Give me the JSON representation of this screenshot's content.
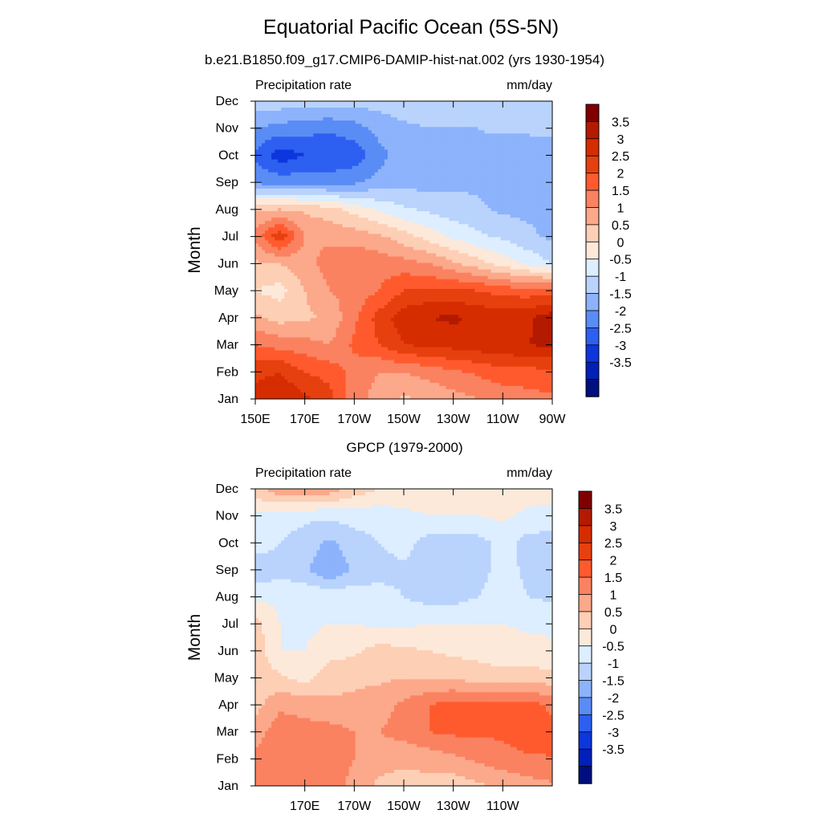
{
  "title": "Equatorial Pacific Ocean (5S-5N)",
  "panels": [
    {
      "subtitle": "b.e21.B1850.f09_g17.CMIP6-DAMIP-hist-nat.002 (yrs 1930-1954)",
      "left_label": "Precipitation rate",
      "right_label": "mm/day",
      "ylabel": "Month"
    },
    {
      "subtitle": "GPCP (1979-2000)",
      "left_label": "Precipitation rate",
      "right_label": "mm/day",
      "ylabel": "Month"
    }
  ],
  "colorbar": {
    "labels": [
      "3.5",
      "3",
      "2.5",
      "2",
      "1.5",
      "1",
      "0.5",
      "0",
      "-0.5",
      "-1",
      "-1.5",
      "-2",
      "-2.5",
      "-3",
      "-3.5"
    ],
    "colors": [
      "#800000",
      "#b31a00",
      "#d62d00",
      "#e6400f",
      "#ff5a2e",
      "#fa8260",
      "#fca88a",
      "#fdcfb5",
      "#fde9da",
      "#dceeff",
      "#b9d3fd",
      "#8cb3fb",
      "#5a8cf5",
      "#2d5ff0",
      "#0d36dc",
      "#0020b8",
      "#000f80"
    ]
  },
  "chart_data": [
    {
      "type": "heatmap",
      "title": "b.e21.B1850.f09_g17.CMIP6-DAMIP-hist-nat.002 (yrs 1930-1954)",
      "xlabel": "",
      "ylabel": "Month",
      "x_range": [
        150,
        270
      ],
      "x_ticks": [
        "150E",
        "170E",
        "170W",
        "150W",
        "130W",
        "110W",
        "90W"
      ],
      "x_tick_values": [
        150,
        170,
        190,
        210,
        230,
        250,
        270
      ],
      "months": [
        "Jan",
        "Feb",
        "Mar",
        "Apr",
        "May",
        "Jun",
        "Jul",
        "Aug",
        "Sep",
        "Oct",
        "Nov",
        "Dec"
      ],
      "x": [
        150,
        160,
        170,
        180,
        190,
        200,
        210,
        220,
        230,
        240,
        250,
        260,
        270
      ],
      "z": [
        [
          2.8,
          3.0,
          2.6,
          2.2,
          1.2,
          0.8,
          0.4,
          0.6,
          0.8,
          1.0,
          1.2,
          1.3,
          1.4
        ],
        [
          2.3,
          2.5,
          2.0,
          1.8,
          1.3,
          1.0,
          1.0,
          1.2,
          1.4,
          1.6,
          1.8,
          1.8,
          1.9
        ],
        [
          1.5,
          1.3,
          1.2,
          1.0,
          1.6,
          2.0,
          2.5,
          2.6,
          2.7,
          2.8,
          2.9,
          3.0,
          3.1
        ],
        [
          0.6,
          0.3,
          0.4,
          0.6,
          1.4,
          2.2,
          2.8,
          3.0,
          3.1,
          2.9,
          2.8,
          2.9,
          3.3
        ],
        [
          0.0,
          -0.2,
          0.5,
          1.0,
          1.2,
          1.5,
          2.0,
          2.1,
          2.1,
          2.0,
          1.8,
          1.7,
          1.8
        ],
        [
          0.4,
          0.5,
          0.8,
          1.2,
          1.4,
          1.3,
          1.2,
          1.0,
          0.6,
          0.2,
          -0.2,
          -0.6,
          -1.0
        ],
        [
          1.2,
          2.4,
          1.0,
          0.9,
          0.8,
          0.6,
          0.2,
          -0.2,
          -0.6,
          -0.9,
          -1.1,
          -1.4,
          -1.6
        ],
        [
          0.4,
          0.5,
          0.4,
          0.2,
          -0.2,
          -0.6,
          -0.9,
          -1.1,
          -1.3,
          -1.4,
          -1.6,
          -1.6,
          -1.6
        ],
        [
          -2.1,
          -2.2,
          -2.2,
          -2.2,
          -2.1,
          -1.8,
          -1.7,
          -1.7,
          -1.6,
          -1.6,
          -1.7,
          -1.6,
          -1.6
        ],
        [
          -2.6,
          -3.3,
          -3.0,
          -3.0,
          -2.8,
          -2.2,
          -1.7,
          -1.6,
          -1.6,
          -1.6,
          -1.8,
          -1.8,
          -1.7
        ],
        [
          -2.0,
          -2.2,
          -2.3,
          -2.4,
          -2.2,
          -1.8,
          -1.6,
          -1.5,
          -1.5,
          -1.5,
          -1.4,
          -1.4,
          -1.4
        ],
        [
          -1.2,
          -1.2,
          -1.2,
          -1.3,
          -1.3,
          -1.3,
          -1.2,
          -1.1,
          -1.1,
          -1.0,
          -1.0,
          -1.0,
          -1.0
        ]
      ]
    },
    {
      "type": "heatmap",
      "title": "GPCP (1979-2000)",
      "xlabel": "",
      "ylabel": "Month",
      "x_range": [
        150,
        270
      ],
      "x_ticks": [
        "170E",
        "170W",
        "150W",
        "130W",
        "110W"
      ],
      "x_tick_values": [
        170,
        190,
        210,
        230,
        250
      ],
      "months": [
        "Jan",
        "Feb",
        "Mar",
        "Apr",
        "May",
        "Jun",
        "Jul",
        "Aug",
        "Sep",
        "Oct",
        "Nov",
        "Dec"
      ],
      "x": [
        150,
        160,
        170,
        180,
        190,
        200,
        210,
        220,
        230,
        240,
        250,
        260,
        270
      ],
      "z": [
        [
          1.0,
          1.2,
          1.5,
          1.3,
          0.8,
          0.4,
          0.3,
          0.3,
          0.2,
          0.4,
          0.6,
          0.8,
          0.9
        ],
        [
          1.1,
          1.3,
          1.4,
          1.3,
          1.0,
          0.7,
          0.6,
          0.7,
          0.9,
          1.1,
          1.3,
          1.4,
          1.5
        ],
        [
          0.8,
          1.3,
          1.2,
          1.2,
          1.0,
          1.0,
          1.2,
          1.5,
          1.6,
          1.6,
          1.6,
          1.9,
          1.6
        ],
        [
          0.3,
          0.9,
          0.8,
          0.6,
          0.6,
          0.8,
          1.1,
          1.5,
          1.7,
          1.6,
          1.6,
          1.7,
          1.4
        ],
        [
          0.3,
          0.1,
          -0.2,
          0.3,
          0.4,
          0.4,
          0.5,
          0.4,
          0.4,
          0.3,
          0.2,
          0.2,
          0.2
        ],
        [
          0.3,
          -0.5,
          -0.5,
          -0.2,
          -0.1,
          0.2,
          0.1,
          0.0,
          -0.1,
          -0.2,
          -0.3,
          -0.3,
          -0.4
        ],
        [
          0.2,
          -0.5,
          -0.6,
          -0.5,
          -0.5,
          -0.6,
          -0.6,
          -0.5,
          -0.5,
          -0.5,
          -0.5,
          -0.6,
          -0.6
        ],
        [
          -0.6,
          -0.6,
          -0.6,
          -0.6,
          -0.7,
          -0.8,
          -1.0,
          -1.2,
          -1.2,
          -1.0,
          -0.8,
          -1.0,
          -1.1
        ],
        [
          -1.4,
          -1.2,
          -1.4,
          -2.0,
          -1.4,
          -1.2,
          -1.1,
          -1.3,
          -1.3,
          -1.2,
          -0.8,
          -1.1,
          -1.3
        ],
        [
          -0.7,
          -1.0,
          -1.2,
          -1.6,
          -1.2,
          -1.0,
          -0.8,
          -1.2,
          -1.3,
          -1.2,
          -0.8,
          -1.2,
          -1.3
        ],
        [
          -0.6,
          -0.8,
          -0.9,
          -0.9,
          -0.8,
          -0.8,
          -0.6,
          -0.5,
          -0.5,
          -0.5,
          -0.4,
          -0.6,
          -0.6
        ],
        [
          0.3,
          0.9,
          1.0,
          0.8,
          0.3,
          0.0,
          -0.2,
          -0.3,
          -0.3,
          -0.3,
          -0.3,
          -0.3,
          -0.4
        ]
      ]
    }
  ]
}
